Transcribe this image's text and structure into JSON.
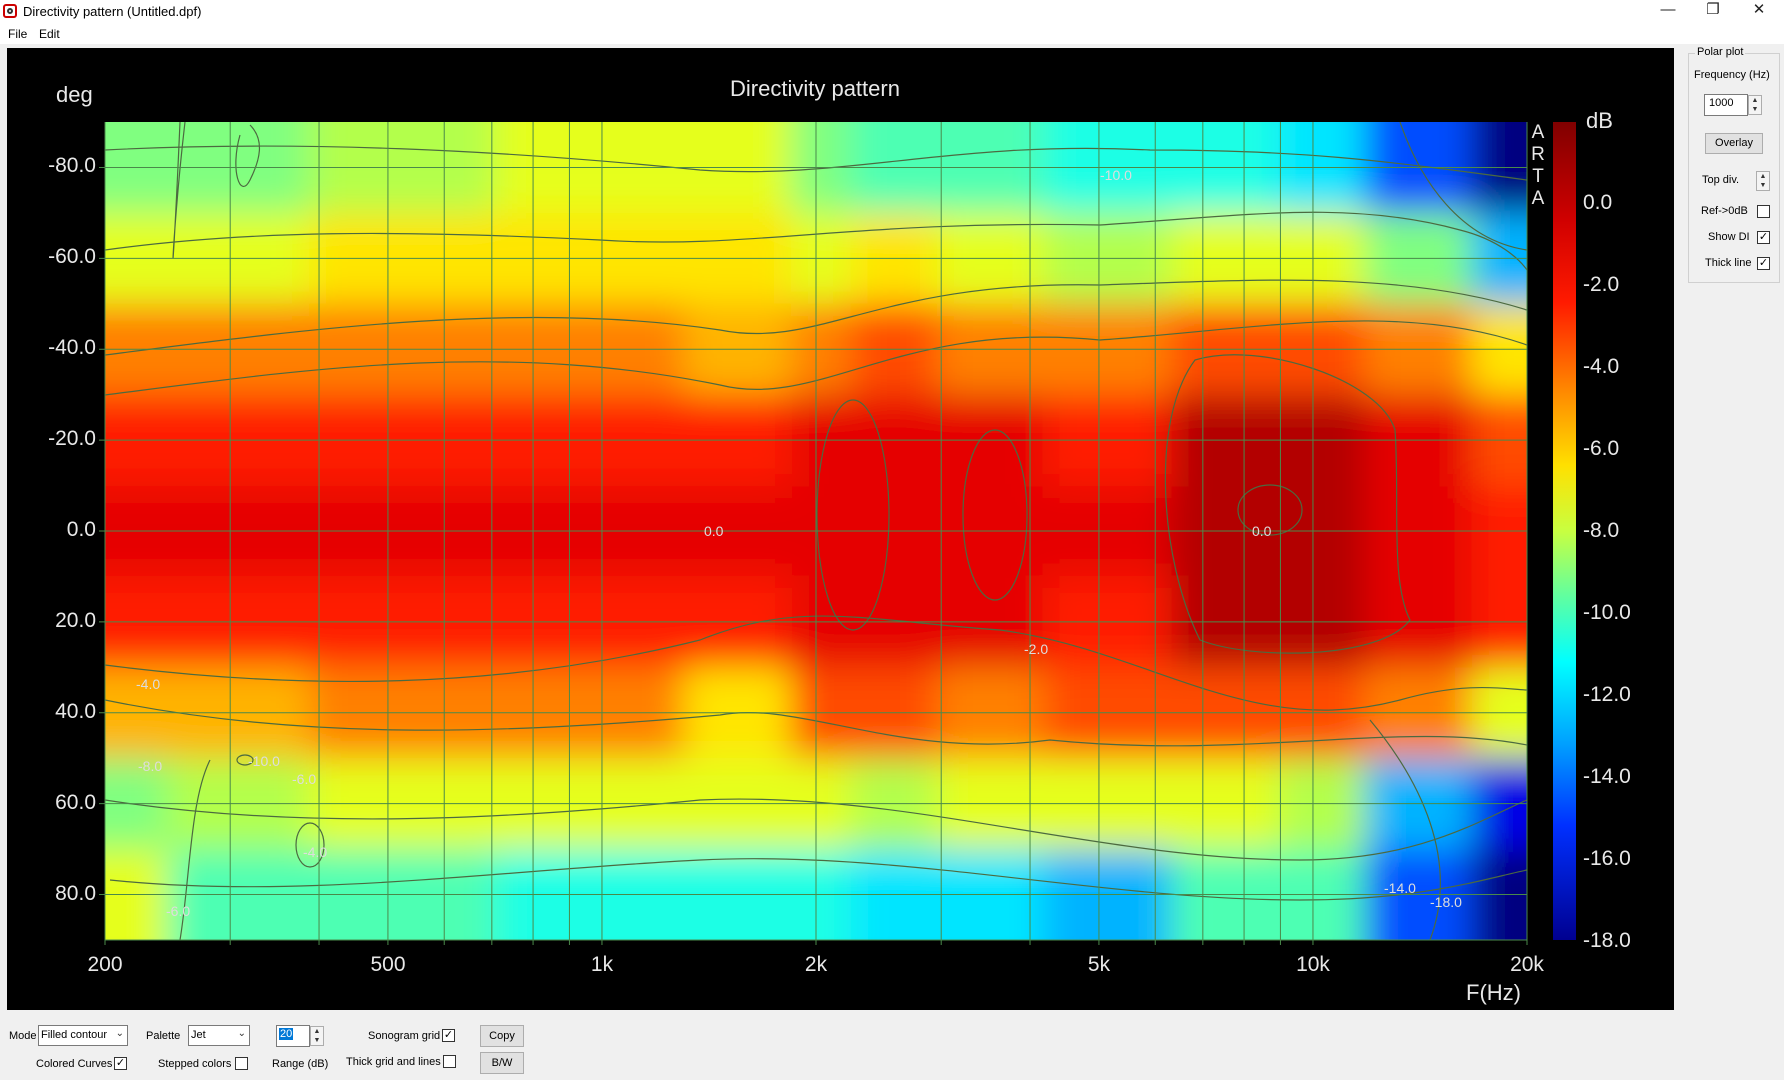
{
  "window": {
    "title": "Directivity pattern (Untitled.dpf)",
    "minimize": "—",
    "maximize": "❐",
    "close": "✕"
  },
  "menu": [
    "File",
    "Edit"
  ],
  "chart": {
    "title": "Directivity pattern",
    "y_unit": "deg",
    "x_unit": "F(Hz)",
    "colorbar_unit": "dB",
    "watermark": [
      "A",
      "R",
      "T",
      "A"
    ],
    "y_ticks": [
      "-80.0",
      "-60.0",
      "-40.0",
      "-20.0",
      "0.0",
      "20.0",
      "40.0",
      "60.0",
      "80.0"
    ],
    "x_ticks": [
      "200",
      "500",
      "1k",
      "2k",
      "5k",
      "10k",
      "20k"
    ],
    "colorbar_ticks": [
      "0.0",
      "-2.0",
      "-4.0",
      "-6.0",
      "-8.0",
      "-10.0",
      "-12.0",
      "-14.0",
      "-16.0",
      "-18.0"
    ],
    "contour_labels": [
      "0.0",
      "0.0",
      "-2.0",
      "-4.0",
      "-8.0",
      "-10.0",
      "-6.0",
      "-4.0",
      "-6.0",
      "-14.0",
      "-18.0",
      "-10.0"
    ]
  },
  "chart_data": {
    "type": "heatmap",
    "title": "Directivity pattern",
    "xlabel": "F(Hz)",
    "ylabel": "deg",
    "x_scale": "log",
    "xlim": [
      200,
      20000
    ],
    "ylim": [
      -90,
      90
    ],
    "y_inverted": true,
    "colorbar_label": "dB",
    "zlim": [
      -18,
      2
    ],
    "palette": "Jet",
    "grid": true,
    "x_tick_values": [
      200,
      500,
      1000,
      2000,
      5000,
      10000,
      20000
    ],
    "y_tick_values": [
      -80,
      -60,
      -40,
      -20,
      0,
      20,
      40,
      60,
      80
    ],
    "frequencies_hz": [
      200,
      300,
      500,
      1000,
      1700,
      2000,
      2500,
      3500,
      5000,
      8000,
      10000,
      14000,
      20000
    ],
    "angles_deg": [
      -80,
      -60,
      -40,
      -20,
      0,
      20,
      40,
      60,
      80
    ],
    "values_db": [
      [
        -8,
        -8,
        -7,
        -6,
        -6,
        -8,
        -9,
        -9,
        -10,
        -10,
        -11,
        -14,
        -18
      ],
      [
        -6,
        -6,
        -5,
        -5,
        -5,
        -6,
        -5,
        -6,
        -7,
        -6,
        -6,
        -8,
        -12
      ],
      [
        -3,
        -3,
        -3,
        -3,
        -4,
        -3,
        -2,
        -3,
        -3,
        -2,
        -2,
        -3,
        -5
      ],
      [
        -1,
        -1,
        -1,
        -1,
        -1,
        0,
        0,
        0,
        -1,
        1,
        1,
        0,
        -2
      ],
      [
        0,
        0,
        0,
        0,
        0,
        0,
        0,
        0,
        0,
        1,
        1,
        0,
        -1
      ],
      [
        -1,
        -1,
        -1,
        -1,
        -1,
        0,
        0,
        0,
        -1,
        1,
        1,
        0,
        -1
      ],
      [
        -4,
        -4,
        -3,
        -3,
        -5,
        -2,
        -2,
        -3,
        -2,
        -2,
        -2,
        -3,
        -6
      ],
      [
        -8,
        -7,
        -6,
        -6,
        -6,
        -6,
        -7,
        -6,
        -6,
        -6,
        -7,
        -12,
        -16
      ],
      [
        -6,
        -9,
        -9,
        -10,
        -10,
        -10,
        -11,
        -11,
        -12,
        -9,
        -9,
        -14,
        -18
      ]
    ]
  },
  "side": {
    "group_title": "Polar plot",
    "freq_label": "Frequency (Hz)",
    "freq_value": "1000",
    "overlay": "Overlay",
    "top_div": "Top div.",
    "ref0": "Ref->0dB",
    "show_di": "Show DI",
    "thick_line": "Thick line"
  },
  "bottom": {
    "mode_label": "Mode",
    "mode_value": "Filled contour",
    "palette_label": "Palette",
    "palette_value": "Jet",
    "range_value": "20",
    "range_label": "Range (dB)",
    "sonogram_grid": "Sonogram grid",
    "colored_curves": "Colored Curves",
    "stepped_colors": "Stepped colors",
    "thick_grid": "Thick grid and  lines",
    "copy": "Copy",
    "bw": "B/W"
  },
  "checks": {
    "ref0": false,
    "show_di": true,
    "thick_line": true,
    "sonogram_grid": true,
    "colored_curves": true,
    "stepped_colors": false,
    "thick_grid": false
  },
  "colors": {
    "plot_background": "#000000",
    "grid": "#4a8a4a",
    "contour": "#4c6a40",
    "text": "#e8e8e8"
  }
}
